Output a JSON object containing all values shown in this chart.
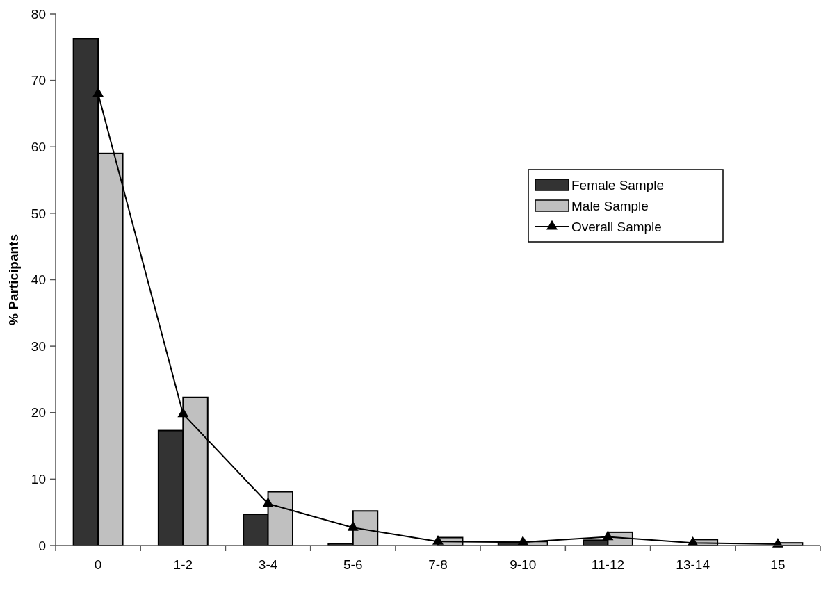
{
  "chart_data": {
    "type": "bar",
    "ylabel": "% Participants",
    "categories": [
      "0",
      "1-2",
      "3-4",
      "5-6",
      "7-8",
      "9-10",
      "11-12",
      "13-14",
      "15"
    ],
    "series": [
      {
        "name": "Female Sample",
        "color": "#333333",
        "values": [
          76.3,
          17.3,
          4.7,
          0.3,
          0,
          0.5,
          0.8,
          0,
          0
        ]
      },
      {
        "name": "Male Sample",
        "color": "#c0c0c0",
        "values": [
          59,
          22.3,
          8.1,
          5.2,
          1.2,
          0.6,
          2.0,
          0.9,
          0.4
        ]
      },
      {
        "name": "Overall Sample",
        "type": "line",
        "color": "#000000",
        "marker": "triangle",
        "values": [
          68,
          19.8,
          6.3,
          2.7,
          0.6,
          0.5,
          1.3,
          0.4,
          0.2
        ]
      }
    ],
    "ylim": [
      0,
      80
    ],
    "yticks": [
      0,
      10,
      20,
      30,
      40,
      50,
      60,
      70,
      80
    ],
    "grid": false,
    "legend": "right"
  }
}
